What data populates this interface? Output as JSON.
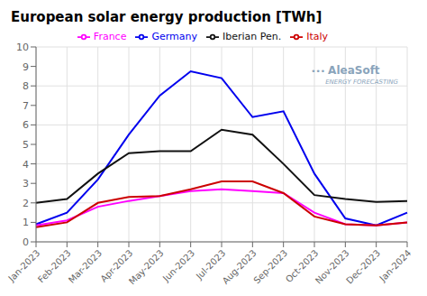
{
  "chart_data": {
    "type": "line",
    "title": "European solar energy production [TWh]",
    "categories": [
      "Jan-2023",
      "Feb-2023",
      "Mar-2023",
      "Apr-2023",
      "May-2023",
      "Jun-2023",
      "Jul-2023",
      "Aug-2023",
      "Sep-2023",
      "Oct-2023",
      "Nov-2023",
      "Dec-2023",
      "Jan-2024"
    ],
    "series": [
      {
        "name": "Germany",
        "color": "#0000EE",
        "values": [
          0.9,
          1.5,
          3.2,
          5.5,
          7.5,
          8.75,
          8.4,
          6.4,
          6.7,
          3.5,
          1.2,
          0.85,
          1.5
        ]
      },
      {
        "name": "France",
        "color": "#FF00FF",
        "values": [
          0.85,
          1.1,
          1.8,
          2.1,
          2.35,
          2.6,
          2.7,
          2.6,
          2.5,
          1.5,
          0.9,
          0.85,
          1.0
        ]
      },
      {
        "name": "Iberian Pen.",
        "color": "#111111",
        "values": [
          2.0,
          2.2,
          3.5,
          4.55,
          4.65,
          4.65,
          5.75,
          5.5,
          4.0,
          2.4,
          2.2,
          2.05,
          2.1
        ]
      },
      {
        "name": "Italy",
        "color": "#CC0000",
        "values": [
          0.75,
          1.0,
          2.0,
          2.3,
          2.35,
          2.7,
          3.1,
          3.1,
          2.5,
          1.3,
          0.9,
          0.85,
          1.0
        ]
      }
    ],
    "ylim": [
      0,
      10
    ],
    "yticks": [
      0,
      1,
      2,
      3,
      4,
      5,
      6,
      7,
      8,
      9,
      10
    ],
    "grid": true,
    "legend": "top",
    "annotations": [
      "•••",
      "AleaSoft",
      "ENERGY FORECASTING"
    ]
  }
}
